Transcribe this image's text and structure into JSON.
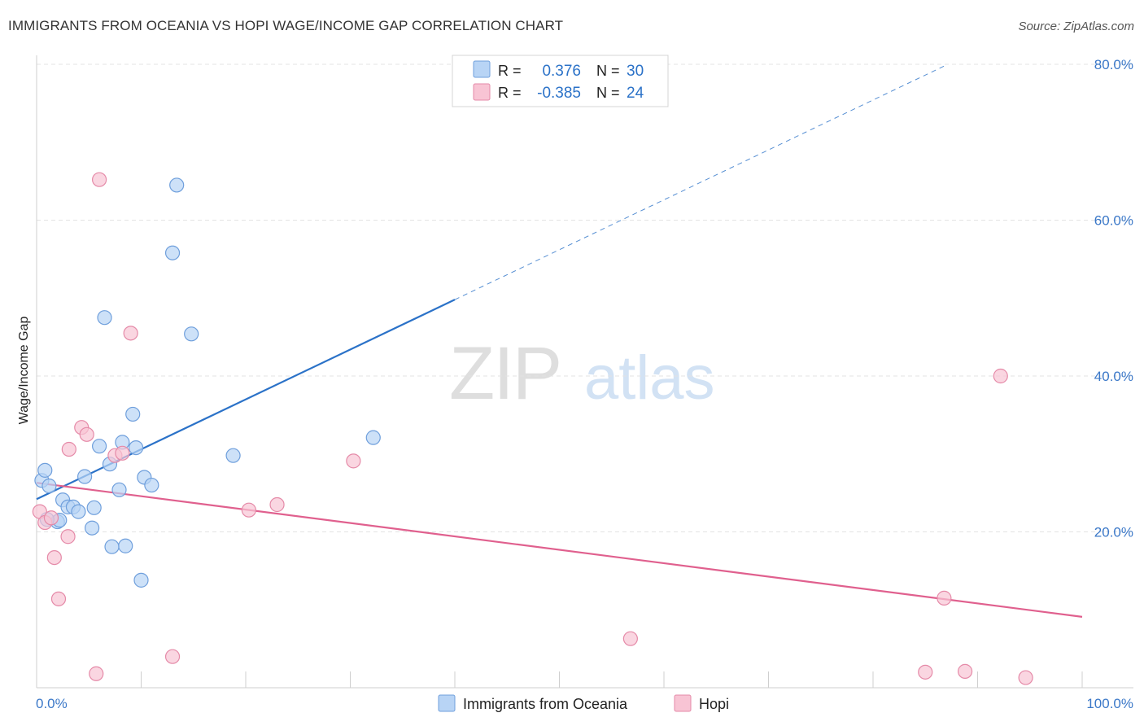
{
  "chart_data": {
    "type": "scatter",
    "title": "IMMIGRANTS FROM OCEANIA VS HOPI WAGE/INCOME GAP CORRELATION CHART",
    "source": "Source: ZipAtlas.com",
    "xlabel": "",
    "ylabel": "Wage/Income Gap",
    "xlim": [
      0,
      100
    ],
    "ylim": [
      0,
      80
    ],
    "x_tick_labels": [
      "0.0%",
      "100.0%"
    ],
    "y_ticks": [
      20,
      40,
      60,
      80
    ],
    "y_tick_labels": [
      "20.0%",
      "40.0%",
      "60.0%",
      "80.0%"
    ],
    "grid": true,
    "watermark": {
      "zip": "ZIP",
      "atlas": "atlas"
    },
    "legend_stats": [
      {
        "r_label": "R =",
        "r_value": "0.376",
        "n_label": "N =",
        "n_value": "30"
      },
      {
        "r_label": "R =",
        "r_value": "-0.385",
        "n_label": "N =",
        "n_value": "24"
      }
    ],
    "series": [
      {
        "name": "Immigrants from Oceania",
        "fill": "#b8d4f5",
        "stroke": "#6f9fdc",
        "line_color": "#2b72c8",
        "trend": {
          "x0": 0,
          "y0": 24.2,
          "x1": 40,
          "y1": 49.8,
          "x_dash_end": 87,
          "y_dash_end": 79.9
        },
        "points": [
          [
            0.5,
            26.6
          ],
          [
            0.8,
            27.9
          ],
          [
            1.2,
            25.9
          ],
          [
            2.5,
            24.1
          ],
          [
            2.0,
            21.3
          ],
          [
            3.0,
            23.2
          ],
          [
            3.5,
            23.2
          ],
          [
            4.0,
            22.6
          ],
          [
            4.6,
            27.1
          ],
          [
            5.5,
            23.1
          ],
          [
            5.3,
            20.5
          ],
          [
            6.0,
            31.0
          ],
          [
            6.5,
            47.5
          ],
          [
            7.0,
            28.7
          ],
          [
            7.9,
            25.4
          ],
          [
            8.2,
            31.5
          ],
          [
            8.5,
            18.2
          ],
          [
            9.2,
            35.1
          ],
          [
            9.5,
            30.8
          ],
          [
            10.3,
            27.0
          ],
          [
            11.0,
            26.0
          ],
          [
            7.2,
            18.1
          ],
          [
            10.0,
            13.8
          ],
          [
            13.0,
            55.8
          ],
          [
            13.4,
            64.5
          ],
          [
            14.8,
            45.4
          ],
          [
            18.8,
            29.8
          ],
          [
            32.2,
            32.1
          ],
          [
            2.2,
            21.5
          ],
          [
            1.0,
            21.6
          ]
        ]
      },
      {
        "name": "Hopi",
        "fill": "#f8c4d4",
        "stroke": "#e58aa8",
        "line_color": "#e0608e",
        "trend": {
          "x0": 0,
          "y0": 26.3,
          "x1": 100,
          "y1": 9.1
        },
        "points": [
          [
            0.3,
            22.6
          ],
          [
            0.8,
            21.2
          ],
          [
            1.4,
            21.8
          ],
          [
            1.7,
            16.7
          ],
          [
            2.1,
            11.4
          ],
          [
            3.0,
            19.4
          ],
          [
            3.1,
            30.6
          ],
          [
            4.3,
            33.4
          ],
          [
            4.8,
            32.5
          ],
          [
            5.7,
            1.8
          ],
          [
            6.0,
            65.2
          ],
          [
            7.5,
            29.8
          ],
          [
            8.2,
            30.1
          ],
          [
            9.0,
            45.5
          ],
          [
            13.0,
            4.0
          ],
          [
            20.3,
            22.8
          ],
          [
            23.0,
            23.5
          ],
          [
            30.3,
            29.1
          ],
          [
            56.8,
            6.3
          ],
          [
            85.0,
            2.0
          ],
          [
            86.8,
            11.5
          ],
          [
            88.8,
            2.1
          ],
          [
            92.2,
            40.0
          ],
          [
            94.6,
            1.3
          ]
        ]
      }
    ]
  }
}
